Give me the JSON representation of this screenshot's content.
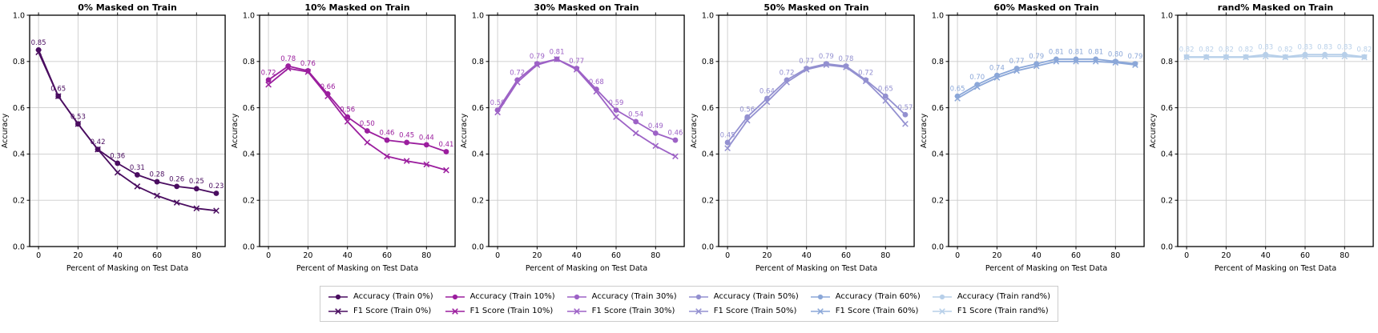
{
  "figure": {
    "xlabel": "Percent of Masking on Test Data",
    "ylabel": "Accuracy",
    "xticks": [
      0,
      20,
      40,
      60,
      80
    ],
    "yticks": [
      0.0,
      0.2,
      0.4,
      0.6,
      0.8,
      1.0
    ],
    "grid_color": "#cccccc",
    "spine_color": "#000000"
  },
  "chart_data": [
    {
      "type": "line",
      "title": "0% Masked on Train",
      "xlabel": "Percent of Masking on Test Data",
      "ylabel": "Accuracy",
      "x": [
        0,
        10,
        20,
        30,
        40,
        50,
        60,
        70,
        80,
        90
      ],
      "xticks": [
        0,
        20,
        40,
        60,
        80
      ],
      "yticks": [
        0.0,
        0.2,
        0.4,
        0.6,
        0.8,
        1.0
      ],
      "xlim": [
        -4.5,
        94.5
      ],
      "ylim": [
        0,
        1
      ],
      "grid": true,
      "color": "#4a0d60",
      "series": [
        {
          "name": "Accuracy (Train 0%)",
          "marker": "circle",
          "values": [
            0.85,
            0.65,
            0.53,
            0.42,
            0.36,
            0.31,
            0.28,
            0.26,
            0.25,
            0.23
          ],
          "point_labels": [
            "0.85",
            "0.65",
            "0.53",
            "0.42",
            "0.36",
            "0.31",
            "0.28",
            "0.26",
            "0.25",
            "0.23"
          ]
        },
        {
          "name": "F1 Score (Train 0%)",
          "marker": "x",
          "values": [
            0.84,
            0.65,
            0.53,
            0.42,
            0.32,
            0.26,
            0.22,
            0.19,
            0.165,
            0.155
          ]
        }
      ]
    },
    {
      "type": "line",
      "title": "10% Masked on Train",
      "xlabel": "Percent of Masking on Test Data",
      "ylabel": "Accuracy",
      "x": [
        0,
        10,
        20,
        30,
        40,
        50,
        60,
        70,
        80,
        90
      ],
      "xticks": [
        0,
        20,
        40,
        60,
        80
      ],
      "yticks": [
        0.0,
        0.2,
        0.4,
        0.6,
        0.8,
        1.0
      ],
      "xlim": [
        -4.5,
        94.5
      ],
      "ylim": [
        0,
        1
      ],
      "grid": true,
      "color": "#9b1e9e",
      "series": [
        {
          "name": "Accuracy (Train 10%)",
          "marker": "circle",
          "values": [
            0.72,
            0.78,
            0.76,
            0.66,
            0.56,
            0.5,
            0.46,
            0.45,
            0.44,
            0.41
          ],
          "point_labels": [
            "0.72",
            "0.78",
            "0.76",
            "0.66",
            "0.56",
            "0.50",
            "0.46",
            "0.45",
            "0.44",
            "0.41"
          ]
        },
        {
          "name": "F1 Score (Train 10%)",
          "marker": "x",
          "values": [
            0.7,
            0.77,
            0.755,
            0.65,
            0.54,
            0.45,
            0.39,
            0.37,
            0.355,
            0.33
          ]
        }
      ]
    },
    {
      "type": "line",
      "title": "30% Masked on Train",
      "xlabel": "Percent of Masking on Test Data",
      "ylabel": "Accuracy",
      "x": [
        0,
        10,
        20,
        30,
        40,
        50,
        60,
        70,
        80,
        90
      ],
      "xticks": [
        0,
        20,
        40,
        60,
        80
      ],
      "yticks": [
        0.0,
        0.2,
        0.4,
        0.6,
        0.8,
        1.0
      ],
      "xlim": [
        -4.5,
        94.5
      ],
      "ylim": [
        0,
        1
      ],
      "grid": true,
      "color": "#9d62c6",
      "series": [
        {
          "name": "Accuracy (Train 30%)",
          "marker": "circle",
          "values": [
            0.59,
            0.72,
            0.79,
            0.81,
            0.77,
            0.68,
            0.59,
            0.54,
            0.49,
            0.46
          ],
          "point_labels": [
            "0.59",
            "0.72",
            "0.79",
            "0.81",
            "0.77",
            "0.68",
            "0.59",
            "0.54",
            "0.49",
            "0.46"
          ]
        },
        {
          "name": "F1 Score (Train 30%)",
          "marker": "x",
          "values": [
            0.58,
            0.71,
            0.785,
            0.81,
            0.765,
            0.67,
            0.56,
            0.49,
            0.435,
            0.39
          ]
        }
      ]
    },
    {
      "type": "line",
      "title": "50% Masked on Train",
      "xlabel": "Percent of Masking on Test Data",
      "ylabel": "Accuracy",
      "x": [
        0,
        10,
        20,
        30,
        40,
        50,
        60,
        70,
        80,
        90
      ],
      "xticks": [
        0,
        20,
        40,
        60,
        80
      ],
      "yticks": [
        0.0,
        0.2,
        0.4,
        0.6,
        0.8,
        1.0
      ],
      "xlim": [
        -4.5,
        94.5
      ],
      "ylim": [
        0,
        1
      ],
      "grid": true,
      "color": "#9390d0",
      "series": [
        {
          "name": "Accuracy (Train 50%)",
          "marker": "circle",
          "values": [
            0.45,
            0.56,
            0.64,
            0.72,
            0.77,
            0.79,
            0.78,
            0.72,
            0.65,
            0.57
          ],
          "point_labels": [
            "0.45",
            "0.56",
            "0.64",
            "0.72",
            "0.77",
            "0.79",
            "0.78",
            "0.72",
            "0.65",
            "0.57"
          ]
        },
        {
          "name": "F1 Score (Train 50%)",
          "marker": "x",
          "values": [
            0.425,
            0.545,
            0.625,
            0.71,
            0.765,
            0.785,
            0.775,
            0.715,
            0.63,
            0.53
          ]
        }
      ]
    },
    {
      "type": "line",
      "title": "60% Masked on Train",
      "xlabel": "Percent of Masking on Test Data",
      "ylabel": "Accuracy",
      "x": [
        0,
        10,
        20,
        30,
        40,
        50,
        60,
        70,
        80,
        90
      ],
      "xticks": [
        0,
        20,
        40,
        60,
        80
      ],
      "yticks": [
        0.0,
        0.2,
        0.4,
        0.6,
        0.8,
        1.0
      ],
      "xlim": [
        -4.5,
        94.5
      ],
      "ylim": [
        0,
        1
      ],
      "grid": true,
      "color": "#8ba7d8",
      "series": [
        {
          "name": "Accuracy (Train 60%)",
          "marker": "circle",
          "values": [
            0.65,
            0.7,
            0.74,
            0.77,
            0.79,
            0.81,
            0.81,
            0.81,
            0.8,
            0.79
          ],
          "point_labels": [
            "0.65",
            "0.70",
            "0.74",
            "0.77",
            "0.79",
            "0.81",
            "0.81",
            "0.81",
            "0.80",
            "0.79"
          ]
        },
        {
          "name": "F1 Score (Train 60%)",
          "marker": "x",
          "values": [
            0.64,
            0.69,
            0.73,
            0.76,
            0.78,
            0.8,
            0.8,
            0.8,
            0.795,
            0.785
          ]
        }
      ]
    },
    {
      "type": "line",
      "title": "rand% Masked on Train",
      "xlabel": "Percent of Masking on Test Data",
      "ylabel": "Accuracy",
      "x": [
        0,
        10,
        20,
        30,
        40,
        50,
        60,
        70,
        80,
        90
      ],
      "xticks": [
        0,
        20,
        40,
        60,
        80
      ],
      "yticks": [
        0.0,
        0.2,
        0.4,
        0.6,
        0.8,
        1.0
      ],
      "xlim": [
        -4.5,
        94.5
      ],
      "ylim": [
        0,
        1
      ],
      "grid": true,
      "color": "#b7cfe9",
      "series": [
        {
          "name": "Accuracy (Train rand%)",
          "marker": "circle",
          "values": [
            0.82,
            0.82,
            0.82,
            0.82,
            0.83,
            0.82,
            0.83,
            0.83,
            0.83,
            0.82
          ],
          "point_labels": [
            "0.82",
            "0.82",
            "0.82",
            "0.82",
            "0.83",
            "0.82",
            "0.83",
            "0.83",
            "0.83",
            "0.82"
          ]
        },
        {
          "name": "F1 Score (Train rand%)",
          "marker": "x",
          "values": [
            0.818,
            0.818,
            0.818,
            0.818,
            0.822,
            0.818,
            0.822,
            0.822,
            0.822,
            0.818
          ]
        }
      ]
    }
  ],
  "legend": {
    "position": "bottom-center",
    "columns": [
      {
        "accuracy_label": "Accuracy (Train 0%)",
        "f1_label": "F1 Score (Train 0%)",
        "color": "#4a0d60"
      },
      {
        "accuracy_label": "Accuracy (Train 10%)",
        "f1_label": "F1 Score (Train 10%)",
        "color": "#9b1e9e"
      },
      {
        "accuracy_label": "Accuracy (Train 30%)",
        "f1_label": "F1 Score (Train 30%)",
        "color": "#9d62c6"
      },
      {
        "accuracy_label": "Accuracy (Train 50%)",
        "f1_label": "F1 Score (Train 50%)",
        "color": "#9390d0"
      },
      {
        "accuracy_label": "Accuracy (Train 60%)",
        "f1_label": "F1 Score (Train 60%)",
        "color": "#8ba7d8"
      },
      {
        "accuracy_label": "Accuracy (Train rand%)",
        "f1_label": "F1 Score (Train rand%)",
        "color": "#b7cfe9"
      }
    ]
  }
}
